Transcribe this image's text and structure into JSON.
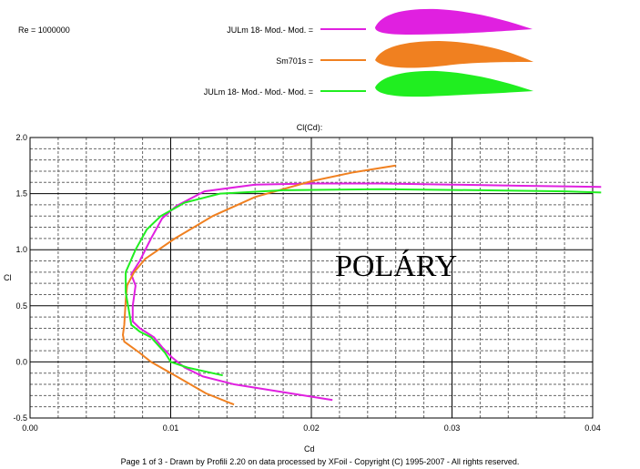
{
  "header": {
    "reynolds": "Re = 1000000"
  },
  "legend": [
    {
      "name": "JULm 18- Mod.- Mod. =",
      "color": "#e020e0",
      "icon": "airfoil-profile-icon"
    },
    {
      "name": "Sm701s =",
      "color": "#f08020",
      "icon": "airfoil-profile-icon"
    },
    {
      "name": "JULm 18- Mod.- Mod.- Mod. =",
      "color": "#20ee20",
      "icon": "airfoil-profile-icon"
    }
  ],
  "watermark": "POLÁRY",
  "footer": "Page 1 of 3   -   Drawn by Profili 2.20 on data processed by  XFoil - Copyright (C) 1995-2007 - All rights reserved.",
  "chart_data": {
    "type": "line",
    "title": "Cl(Cd):",
    "xlabel": "Cd",
    "ylabel": "Cl",
    "xlim": [
      0,
      0.04
    ],
    "ylim": [
      -0.5,
      2.0
    ],
    "x_ticks": [
      "0.00",
      "0.01",
      "0.02",
      "0.03",
      "0.04"
    ],
    "y_ticks": [
      "-0.5",
      "0.0",
      "0.5",
      "1.0",
      "1.5",
      "2.0"
    ],
    "grid": true,
    "series": [
      {
        "name": "JULm 18- Mod.- Mod. =",
        "color": "#e020e0",
        "points": [
          [
            0.0215,
            -0.34
          ],
          [
            0.0185,
            -0.28
          ],
          [
            0.0145,
            -0.2
          ],
          [
            0.0123,
            -0.13
          ],
          [
            0.011,
            -0.05
          ],
          [
            0.0101,
            0.04
          ],
          [
            0.0094,
            0.13
          ],
          [
            0.0088,
            0.22
          ],
          [
            0.0078,
            0.3
          ],
          [
            0.0073,
            0.36
          ],
          [
            0.0073,
            0.5
          ],
          [
            0.0075,
            0.68
          ],
          [
            0.0072,
            0.78
          ],
          [
            0.0078,
            0.9
          ],
          [
            0.0086,
            1.1
          ],
          [
            0.0094,
            1.28
          ],
          [
            0.0104,
            1.39
          ],
          [
            0.0124,
            1.52
          ],
          [
            0.016,
            1.58
          ],
          [
            0.02,
            1.59
          ],
          [
            0.025,
            1.59
          ],
          [
            0.03,
            1.58
          ],
          [
            0.035,
            1.57
          ],
          [
            0.0406,
            1.56
          ]
        ]
      },
      {
        "name": "Sm701s =",
        "color": "#f08020",
        "points": [
          [
            0.0145,
            -0.38
          ],
          [
            0.0125,
            -0.28
          ],
          [
            0.0103,
            -0.12
          ],
          [
            0.0086,
            0.0
          ],
          [
            0.0078,
            0.08
          ],
          [
            0.0067,
            0.18
          ],
          [
            0.0066,
            0.24
          ],
          [
            0.0067,
            0.33
          ],
          [
            0.0068,
            0.55
          ],
          [
            0.0069,
            0.68
          ],
          [
            0.0074,
            0.8
          ],
          [
            0.0082,
            0.92
          ],
          [
            0.0103,
            1.1
          ],
          [
            0.013,
            1.3
          ],
          [
            0.016,
            1.47
          ],
          [
            0.02,
            1.61
          ],
          [
            0.023,
            1.69
          ],
          [
            0.026,
            1.75
          ]
        ]
      },
      {
        "name": "JULm 18- Mod.- Mod.- Mod. =",
        "color": "#20ee20",
        "points": [
          [
            0.0137,
            -0.12
          ],
          [
            0.0112,
            -0.05
          ],
          [
            0.01,
            0.0
          ],
          [
            0.0096,
            0.08
          ],
          [
            0.0091,
            0.15
          ],
          [
            0.0086,
            0.22
          ],
          [
            0.0078,
            0.27
          ],
          [
            0.0072,
            0.33
          ],
          [
            0.007,
            0.48
          ],
          [
            0.0068,
            0.62
          ],
          [
            0.0068,
            0.8
          ],
          [
            0.0075,
            1.0
          ],
          [
            0.0083,
            1.18
          ],
          [
            0.0093,
            1.3
          ],
          [
            0.011,
            1.42
          ],
          [
            0.0135,
            1.5
          ],
          [
            0.018,
            1.53
          ],
          [
            0.025,
            1.54
          ],
          [
            0.032,
            1.53
          ],
          [
            0.038,
            1.52
          ],
          [
            0.0406,
            1.51
          ]
        ]
      }
    ]
  }
}
